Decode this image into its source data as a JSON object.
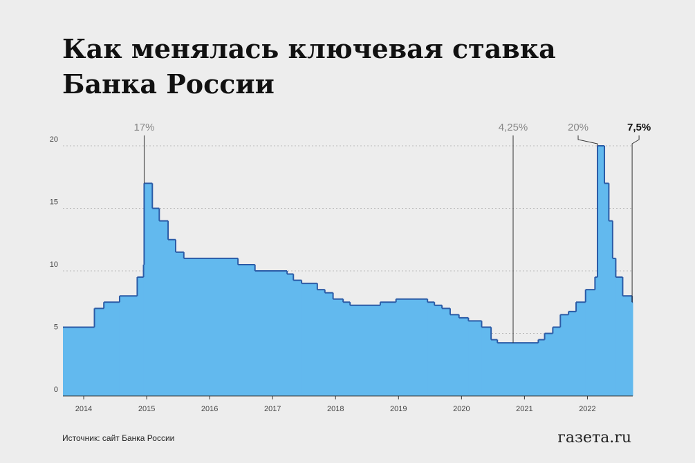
{
  "chart_data": {
    "type": "step-area",
    "title": "Как менялась ключевая ставка",
    "subtitle": "Банка России",
    "source": "Источник: сайт Банка России",
    "logo": "газета.ru",
    "color": "#62b9ee",
    "line_color": "#2b5ba6",
    "grid": true,
    "x": [
      2013.67,
      2014.17,
      2014.32,
      2014.57,
      2014.85,
      2014.95,
      2014.96,
      2015.09,
      2015.2,
      2015.34,
      2015.46,
      2015.59,
      2016.45,
      2016.72,
      2017.23,
      2017.33,
      2017.46,
      2017.71,
      2017.83,
      2017.96,
      2018.12,
      2018.23,
      2018.71,
      2018.96,
      2019.46,
      2019.57,
      2019.69,
      2019.82,
      2019.96,
      2020.11,
      2020.32,
      2020.47,
      2020.57,
      2021.22,
      2021.32,
      2021.45,
      2021.57,
      2021.7,
      2021.82,
      2021.97,
      2022.12,
      2022.16,
      2022.27,
      2022.34,
      2022.4,
      2022.45,
      2022.56,
      2022.71
    ],
    "values": [
      5.5,
      7,
      7.5,
      8,
      9.5,
      10.5,
      17,
      15,
      14,
      12.5,
      11.5,
      11,
      10.5,
      10,
      9.75,
      9.25,
      9,
      8.5,
      8.25,
      7.75,
      7.5,
      7.25,
      7.5,
      7.75,
      7.5,
      7.25,
      7,
      6.5,
      6.25,
      6,
      5.5,
      4.5,
      4.25,
      4.5,
      5,
      5.5,
      6.5,
      6.75,
      7.5,
      8.5,
      9.5,
      20,
      17,
      14,
      11,
      9.5,
      8,
      7.5
    ],
    "xlim": [
      2013.67,
      2022.72
    ],
    "ylim": [
      0,
      20
    ],
    "xticks": [
      2014,
      2015,
      2016,
      2017,
      2018,
      2019,
      2020,
      2021,
      2022
    ],
    "yticks": [
      0,
      5,
      10,
      15,
      20
    ],
    "annotations": [
      {
        "label": "17%",
        "value": 17,
        "x": 2014.96
      },
      {
        "label": "4,25%",
        "value": 4.25,
        "x": 2020.82
      },
      {
        "label": "20%",
        "value": 20,
        "x": 2022.16
      },
      {
        "label": "7,5%",
        "value": 7.5,
        "x": 2022.71
      }
    ]
  }
}
